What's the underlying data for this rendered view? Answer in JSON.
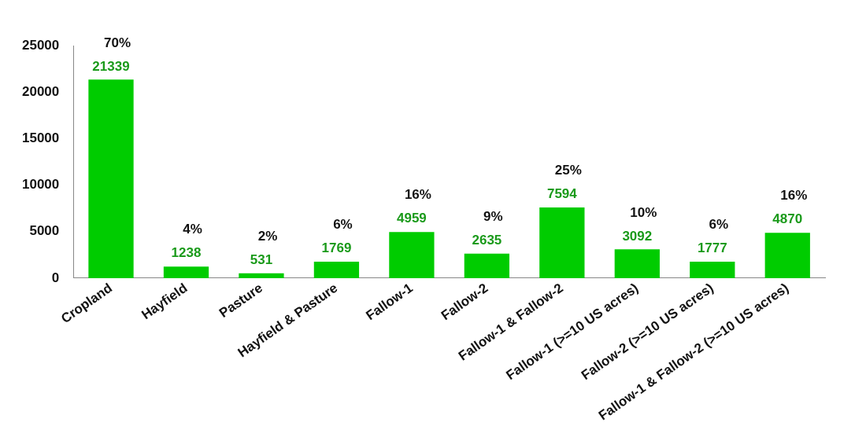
{
  "chart_data": {
    "type": "bar",
    "categories": [
      "Cropland",
      "Hayfield",
      "Pasture",
      "Hayfield & Pasture",
      "Fallow-1",
      "Fallow-2",
      "Fallow-1 & Fallow-2",
      "Fallow-1 (>=10 US acres)",
      "Fallow-2 (>=10 US acres)",
      "Fallow-1 & Fallow-2 (>=10 US acres)"
    ],
    "values": [
      21339,
      1238,
      531,
      1769,
      4959,
      2635,
      7594,
      3092,
      1777,
      4870
    ],
    "color": "#00cc00",
    "ylim": [
      0,
      25000
    ],
    "yticks": [
      0,
      5000,
      10000,
      15000,
      20000,
      25000
    ],
    "grid": false,
    "data_labels": true,
    "annotations": [
      {
        "text": "70%",
        "x": "Cropland",
        "y": 21339
      },
      {
        "text": "4%",
        "x": "Hayfield",
        "y": 1238
      },
      {
        "text": "2%",
        "x": "Pasture",
        "y": 531
      },
      {
        "text": "6%",
        "x": "Hayfield & Pasture",
        "y": 1769
      },
      {
        "text": "16%",
        "x": "Fallow-1",
        "y": 4959
      },
      {
        "text": "9%",
        "x": "Fallow-2",
        "y": 2635
      },
      {
        "text": "25%",
        "x": "Fallow-1 & Fallow-2",
        "y": 7594
      },
      {
        "text": "10%",
        "x": "Fallow-1 (>=10 US acres)",
        "y": 3092
      },
      {
        "text": "6%",
        "x": "Fallow-2 (>=10 US acres)",
        "y": 1777
      },
      {
        "text": "16%",
        "x": "Fallow-1 & Fallow-2 (>=10 US acres)",
        "y": 4870
      }
    ]
  }
}
